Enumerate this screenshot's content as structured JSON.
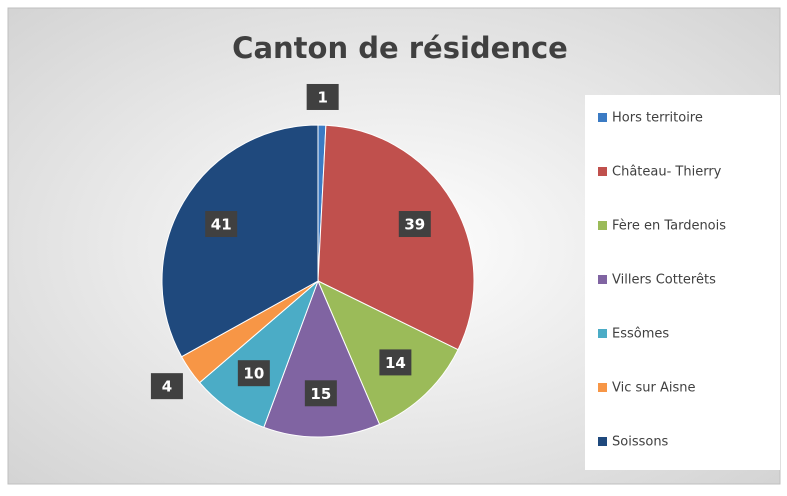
{
  "chart_data": {
    "type": "pie",
    "title": "Canton de résidence",
    "categories": [
      "Hors territoire",
      "Château- Thierry",
      "Fère en Tardenois",
      "Villers Cotterêts",
      "Essômes",
      "Vic sur Aisne",
      "Soissons"
    ],
    "values": [
      1,
      39,
      14,
      15,
      10,
      4,
      41
    ],
    "colors": [
      "#3b7bc4",
      "#c0504d",
      "#9bbb59",
      "#8064a2",
      "#4bacc6",
      "#f79646",
      "#1f497d"
    ],
    "legend": "right"
  }
}
